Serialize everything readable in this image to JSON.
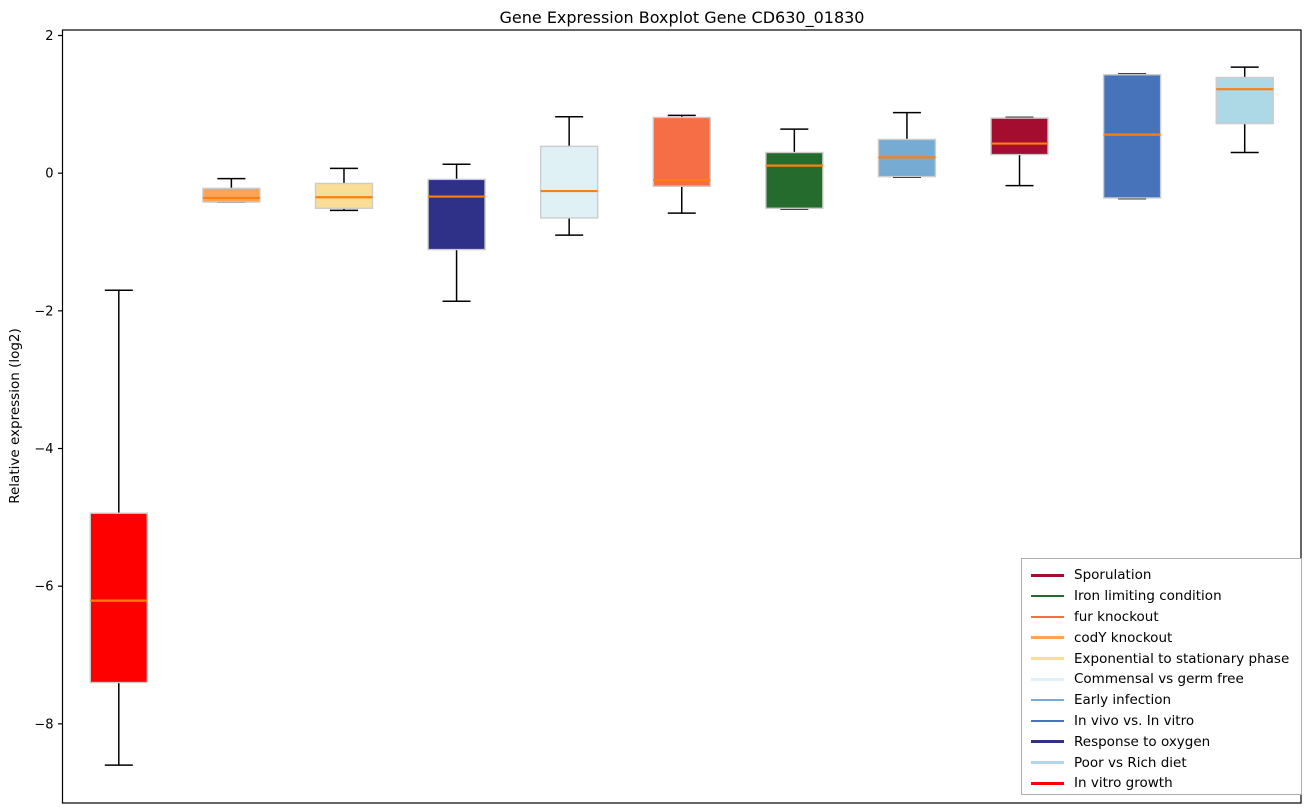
{
  "chart_data": {
    "type": "boxplot",
    "title": "Gene Expression Boxplot Gene CD630_01830",
    "xlabel": "",
    "ylabel": "Relative expression (log2)",
    "ylim": [
      -9.15,
      2.08
    ],
    "yticks": [
      2,
      0,
      -2,
      -4,
      -6,
      -8
    ],
    "grid": false,
    "legend_position": "lower right",
    "median_color": "#ff7f0e",
    "whisker_color": "#000000",
    "box_edge_color": "#cccccc",
    "series": [
      {
        "name": "In vitro growth",
        "color": "#ff0000",
        "whisker_lo": -8.6,
        "q1": -7.4,
        "median": -6.21,
        "q3": -4.94,
        "whisker_hi": -1.7
      },
      {
        "name": "codY knockout",
        "color": "#faa45a",
        "whisker_lo": -0.42,
        "q1": -0.42,
        "median": -0.36,
        "q3": -0.22,
        "whisker_hi": -0.08
      },
      {
        "name": "Exponential to stationary phase",
        "color": "#fbde96",
        "whisker_lo": -0.54,
        "q1": -0.51,
        "median": -0.35,
        "q3": -0.15,
        "whisker_hi": 0.07
      },
      {
        "name": "Response to oxygen",
        "color": "#2f3189",
        "whisker_lo": -1.86,
        "q1": -1.11,
        "median": -0.34,
        "q3": -0.09,
        "whisker_hi": 0.13
      },
      {
        "name": "Commensal vs germ free",
        "color": "#e0f1f6",
        "whisker_lo": -0.9,
        "q1": -0.65,
        "median": -0.26,
        "q3": 0.39,
        "whisker_hi": 0.82
      },
      {
        "name": "fur knockout",
        "color": "#f56e46",
        "whisker_lo": -0.58,
        "q1": -0.19,
        "median": -0.1,
        "q3": 0.81,
        "whisker_hi": 0.84
      },
      {
        "name": "Iron limiting condition",
        "color": "#256b2d",
        "whisker_lo": -0.52,
        "q1": -0.51,
        "median": 0.11,
        "q3": 0.3,
        "whisker_hi": 0.64
      },
      {
        "name": "Early infection",
        "color": "#76acd4",
        "whisker_lo": -0.06,
        "q1": -0.05,
        "median": 0.23,
        "q3": 0.49,
        "whisker_hi": 0.88
      },
      {
        "name": "Sporulation",
        "color": "#a40c30",
        "whisker_lo": -0.18,
        "q1": 0.27,
        "median": 0.43,
        "q3": 0.8,
        "whisker_hi": 0.81
      },
      {
        "name": "In vivo vs. In vitro",
        "color": "#4673b9",
        "whisker_lo": -0.37,
        "q1": -0.36,
        "median": 0.56,
        "q3": 1.43,
        "whisker_hi": 1.44
      },
      {
        "name": "Poor vs Rich diet",
        "color": "#add8e6",
        "whisker_lo": 0.3,
        "q1": 0.72,
        "median": 1.22,
        "q3": 1.39,
        "whisker_hi": 1.54
      }
    ],
    "legend": [
      "Sporulation",
      "Iron limiting condition",
      "fur knockout",
      "codY knockout",
      "Exponential to stationary phase",
      "Commensal vs germ free",
      "Early infection",
      "In vivo vs. In vitro",
      "Response to oxygen",
      "Poor vs Rich diet",
      "In vitro growth"
    ]
  }
}
